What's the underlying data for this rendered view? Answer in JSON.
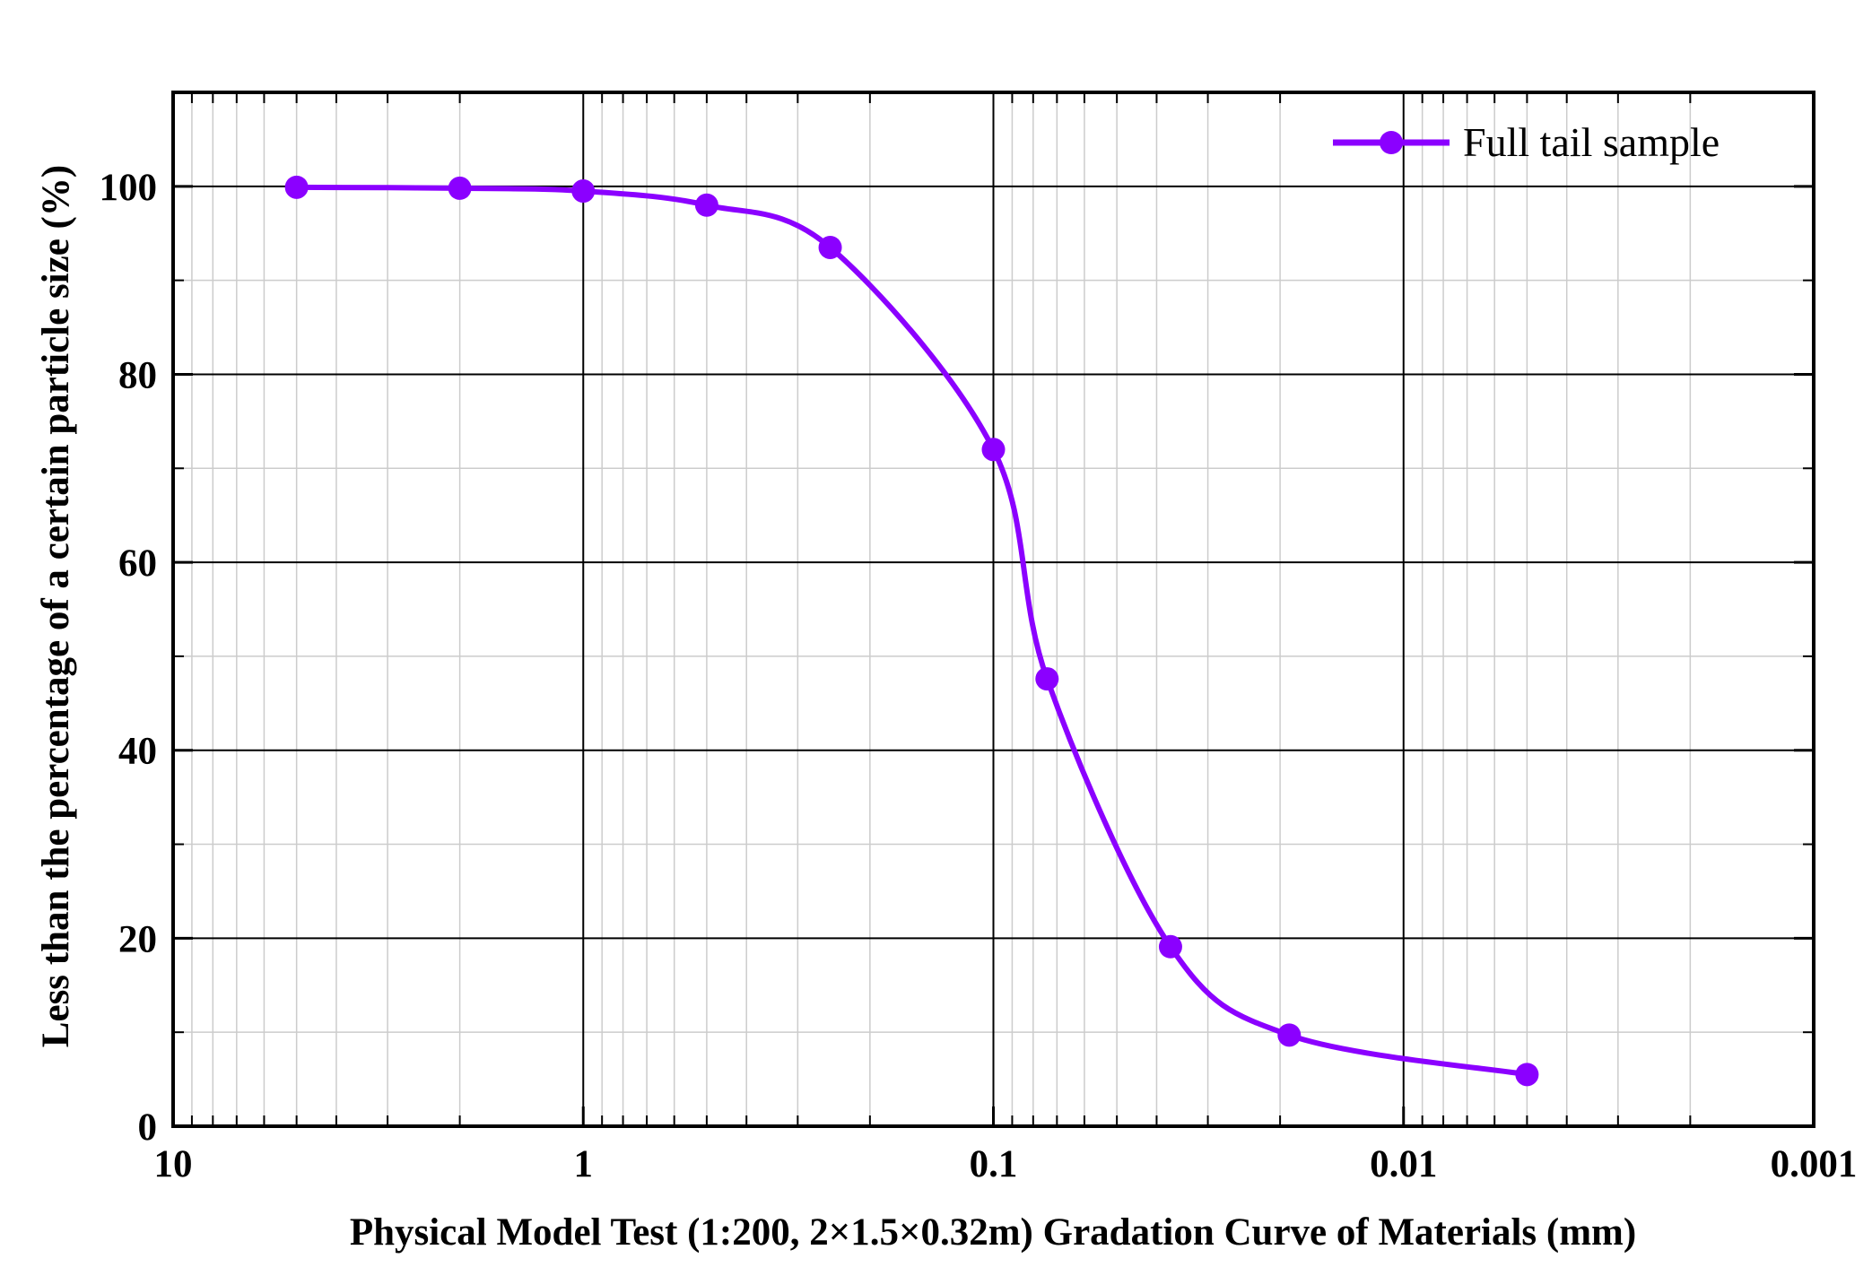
{
  "chart_data": {
    "type": "line",
    "xlabel": "Physical Model Test (1:200, 2×1.5×0.32m) Gradation Curve of Materials (mm)",
    "ylabel": "Less than the percentage of a certain particle size (%)",
    "x_scale": "log",
    "x_reversed": true,
    "xlim": [
      10,
      0.001
    ],
    "ylim": [
      0,
      110
    ],
    "x_ticks": [
      {
        "value": 10,
        "label": "10"
      },
      {
        "value": 1,
        "label": "1"
      },
      {
        "value": 0.1,
        "label": "0.1"
      },
      {
        "value": 0.01,
        "label": "0.01"
      },
      {
        "value": 0.001,
        "label": "0.001"
      }
    ],
    "y_ticks": [
      {
        "value": 0,
        "label": "0"
      },
      {
        "value": 20,
        "label": "20"
      },
      {
        "value": 40,
        "label": "40"
      },
      {
        "value": 60,
        "label": "60"
      },
      {
        "value": 80,
        "label": "80"
      },
      {
        "value": 100,
        "label": "100"
      }
    ],
    "grid": true,
    "legend_position": "top-right",
    "series": [
      {
        "name": "Full tail sample",
        "color": "#8b00ff",
        "marker": "circle",
        "smoothed": true,
        "x": [
          5,
          2,
          1,
          0.5,
          0.25,
          0.1,
          0.074,
          0.037,
          0.019,
          0.005
        ],
        "y": [
          99.9,
          99.8,
          99.5,
          98.0,
          93.5,
          72.0,
          47.6,
          19.1,
          9.7,
          5.5
        ]
      }
    ]
  }
}
